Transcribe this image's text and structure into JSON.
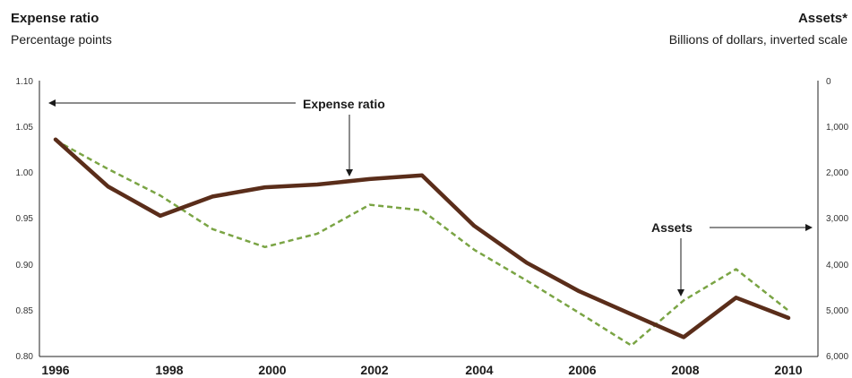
{
  "chart_data": {
    "type": "line",
    "left_axis": {
      "title": "Expense ratio",
      "subtitle": "Percentage points",
      "ylim": [
        0.8,
        1.1
      ],
      "ticks": [
        "0.80",
        "0.85",
        "0.90",
        "0.95",
        "1.00",
        "1.05",
        "1.10"
      ]
    },
    "right_axis": {
      "title": "Assets*",
      "subtitle": "Billions of dollars, inverted scale",
      "ylim": [
        0,
        6000
      ],
      "inverted": true,
      "ticks": [
        "0",
        "1,000",
        "2,000",
        "3,000",
        "4,000",
        "5,000",
        "6,000"
      ]
    },
    "x_ticks": [
      "1996",
      "1998",
      "2000",
      "2002",
      "2004",
      "2006",
      "2008",
      "2010"
    ],
    "x_range": [
      1996,
      2010.3
    ],
    "series": [
      {
        "name": "Expense ratio",
        "axis": "left",
        "color": "#5a2d1a",
        "style": "solid",
        "x": [
          1996,
          1997,
          1998,
          1999,
          2000,
          2001,
          2002,
          2003,
          2004,
          2005,
          2006,
          2007,
          2008,
          2009,
          2010
        ],
        "values": [
          1.036,
          0.985,
          0.953,
          0.974,
          0.984,
          0.987,
          0.993,
          0.997,
          0.942,
          0.902,
          0.871,
          0.846,
          0.821,
          0.864,
          0.842
        ]
      },
      {
        "name": "Assets",
        "axis": "right",
        "color": "#7aa444",
        "style": "dashed",
        "x": [
          1996,
          1997,
          1998,
          1999,
          2000,
          2001,
          2002,
          2003,
          2004,
          2005,
          2006,
          2007,
          2008,
          2009,
          2010
        ],
        "values": [
          1300,
          1920,
          2500,
          3230,
          3620,
          3330,
          2700,
          2820,
          3680,
          4350,
          5050,
          5760,
          4780,
          4100,
          5000
        ]
      }
    ],
    "annotations": [
      {
        "text": "Expense ratio",
        "points_to": "Expense ratio"
      },
      {
        "text": "Assets",
        "points_to": "Assets"
      }
    ]
  }
}
